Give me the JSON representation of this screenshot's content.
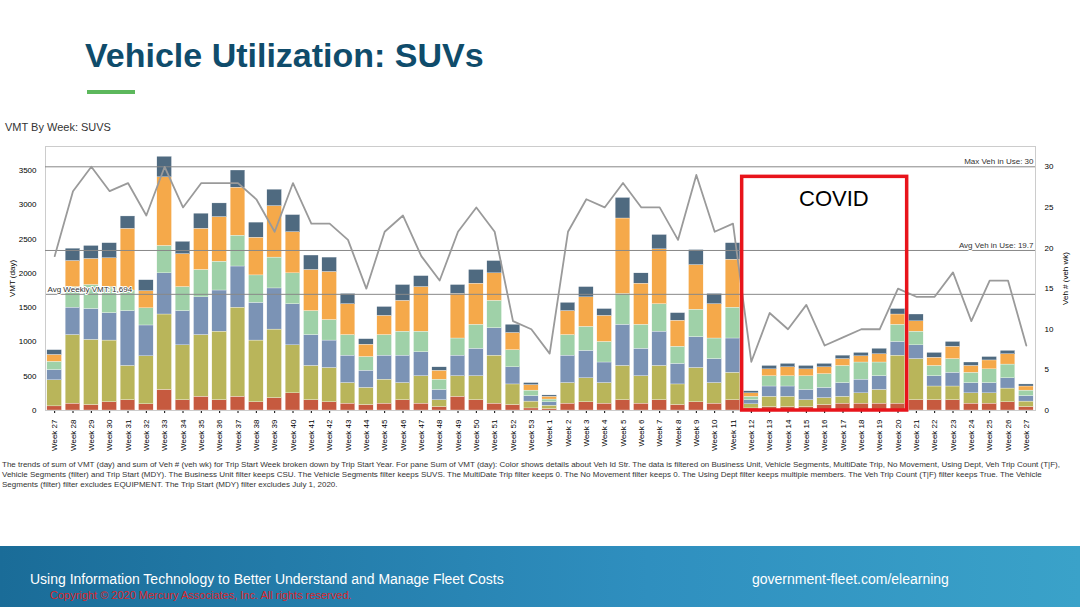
{
  "slide": {
    "title": "Vehicle Utilization: SUVs",
    "caption": "The trends of sum of VMT (day) and sum of Veh # (veh wk) for Trip Start Week broken down by Trip Start Year.  For pane Sum of VMT (day):  Color shows details about Veh Id Str. The data is filtered on Business Unit, Vehicle Segments, MultiDate Trip, No Movement, Using Dept, Veh Trip Count (T|F), Vehicle Segments (filter) and Trip Start (MDY). The Business Unit filter keeps CSU. The Vehicle Segments filter keeps SUVS. The MultiDate Trip filter keeps 0. The No Movement filter keeps 0. The Using Dept filter keeps multiple members. The Veh Trip Count (T|F) filter keeps True. The Vehicle Segments (filter) filter excludes EQUIPMENT. The Trip Start (MDY) filter excludes July 1, 2020.",
    "footer": "Using Information Technology to Better Understand and Manage Fleet Costs",
    "copyright": "Copyright ©  2020 Mercury Associates, Inc. All rights reserved.",
    "url": "government-fleet.com/elearning"
  },
  "chart_data": {
    "type": "bar",
    "stacked": true,
    "title": "VMT By Week: SUVS",
    "ylabel": "VMT (day)",
    "y2label": "Veh # (veh wk)",
    "categories": [
      "Week 27",
      "Week 28",
      "Week 29",
      "Week 30",
      "Week 31",
      "Week 32",
      "Week 33",
      "Week 34",
      "Week 35",
      "Week 36",
      "Week 37",
      "Week 38",
      "Week 39",
      "Week 40",
      "Week 41",
      "Week 42",
      "Week 43",
      "Week 44",
      "Week 45",
      "Week 46",
      "Week 47",
      "Week 48",
      "Week 49",
      "Week 50",
      "Week 51",
      "Week 52",
      "Week 53",
      "Week 1",
      "Week 2",
      "Week 3",
      "Week 4",
      "Week 5",
      "Week 6",
      "Week 7",
      "Week 8",
      "Week 9",
      "Week 10",
      "Week 11",
      "Week 12",
      "Week 13",
      "Week 14",
      "Week 15",
      "Week 16",
      "Week 17",
      "Week 18",
      "Week 19",
      "Week 20",
      "Week 21",
      "Week 22",
      "Week 23",
      "Week 24",
      "Week 25",
      "Week 26",
      "Week 27"
    ],
    "ylim": [
      0,
      3850
    ],
    "yticks": [
      0,
      500,
      1000,
      1500,
      2000,
      2500,
      3000,
      3500
    ],
    "y2lim": [
      0,
      32.5
    ],
    "y2ticks": [
      0,
      5,
      10,
      15,
      20,
      25,
      30
    ],
    "series": [
      {
        "type": "bar",
        "color": "#c65a3f",
        "values": [
          60,
          100,
          80,
          120,
          150,
          90,
          300,
          150,
          200,
          150,
          200,
          120,
          180,
          250,
          150,
          120,
          100,
          80,
          100,
          150,
          100,
          50,
          200,
          150,
          100,
          80,
          30,
          20,
          100,
          120,
          100,
          150,
          100,
          150,
          80,
          120,
          100,
          150,
          30,
          50,
          50,
          50,
          80,
          100,
          100,
          100,
          100,
          150,
          150,
          150,
          100,
          100,
          120,
          50
        ]
      },
      {
        "type": "bar",
        "color": "#b9b55a",
        "values": [
          380,
          1000,
          950,
          900,
          500,
          700,
          1100,
          800,
          900,
          1000,
          1300,
          900,
          1000,
          700,
          500,
          500,
          300,
          250,
          350,
          250,
          400,
          100,
          300,
          350,
          700,
          300,
          100,
          50,
          300,
          350,
          300,
          500,
          400,
          500,
          300,
          500,
          300,
          400,
          60,
          150,
          150,
          100,
          100,
          100,
          150,
          200,
          700,
          600,
          200,
          200,
          150,
          150,
          200,
          80
        ]
      },
      {
        "type": "bar",
        "color": "#7b93b5",
        "values": [
          150,
          400,
          450,
          400,
          800,
          450,
          600,
          500,
          550,
          600,
          600,
          550,
          600,
          600,
          450,
          400,
          400,
          250,
          350,
          400,
          350,
          150,
          300,
          400,
          400,
          250,
          80,
          50,
          400,
          400,
          300,
          600,
          400,
          500,
          300,
          450,
          350,
          500,
          60,
          150,
          150,
          150,
          150,
          200,
          200,
          200,
          200,
          200,
          150,
          200,
          150,
          150,
          150,
          80
        ]
      },
      {
        "type": "bar",
        "color": "#9fd1a8",
        "values": [
          120,
          300,
          350,
          380,
          300,
          250,
          400,
          350,
          400,
          420,
          450,
          400,
          450,
          450,
          350,
          300,
          300,
          200,
          300,
          350,
          300,
          150,
          250,
          350,
          400,
          250,
          80,
          40,
          300,
          350,
          300,
          450,
          350,
          400,
          250,
          400,
          300,
          450,
          50,
          150,
          150,
          200,
          200,
          250,
          250,
          200,
          250,
          200,
          150,
          200,
          150,
          200,
          200,
          80
        ]
      },
      {
        "type": "bar",
        "color": "#f5a94a",
        "values": [
          100,
          380,
          380,
          420,
          900,
          250,
          1000,
          480,
          600,
          650,
          700,
          550,
          750,
          600,
          600,
          700,
          450,
          180,
          280,
          450,
          650,
          130,
          650,
          600,
          400,
          250,
          80,
          40,
          350,
          430,
          380,
          1100,
          600,
          800,
          380,
          650,
          500,
          700,
          50,
          100,
          130,
          100,
          100,
          100,
          90,
          120,
          150,
          150,
          120,
          180,
          100,
          130,
          150,
          60
        ]
      },
      {
        "type": "bar",
        "color": "#4f6a80",
        "values": [
          70,
          180,
          190,
          220,
          180,
          160,
          300,
          180,
          220,
          200,
          250,
          220,
          240,
          250,
          210,
          210,
          150,
          80,
          130,
          230,
          160,
          50,
          130,
          200,
          180,
          120,
          30,
          20,
          120,
          150,
          100,
          300,
          150,
          210,
          110,
          220,
          150,
          240,
          30,
          50,
          50,
          50,
          50,
          50,
          50,
          80,
          80,
          100,
          70,
          70,
          50,
          50,
          50,
          30
        ]
      },
      {
        "type": "line",
        "axis": "y2",
        "color": "#9a9a9a",
        "values": [
          19,
          27,
          30,
          27,
          28,
          24,
          30,
          25,
          28,
          28,
          28,
          26,
          22,
          28,
          23,
          23,
          21,
          15,
          22,
          24,
          19,
          16,
          22,
          25,
          22,
          11,
          10,
          7,
          22,
          26,
          25,
          28,
          25,
          25,
          21,
          29,
          22,
          23,
          6,
          12,
          10,
          13,
          8,
          9,
          10,
          10,
          15,
          14,
          14,
          17,
          11,
          16,
          16,
          8
        ]
      }
    ],
    "annotations": [
      {
        "text": "Avg Weekly VMT: 1,694",
        "value": 1694,
        "axis": "y"
      },
      {
        "text": "Max Veh in Use: 30",
        "value": 30,
        "axis": "y2"
      },
      {
        "text": "Avg Veh in Use: 19.7",
        "value": 19.7,
        "axis": "y2"
      },
      {
        "text": "COVID",
        "x_start": "Week 12",
        "x_end": "Week 20"
      }
    ]
  }
}
